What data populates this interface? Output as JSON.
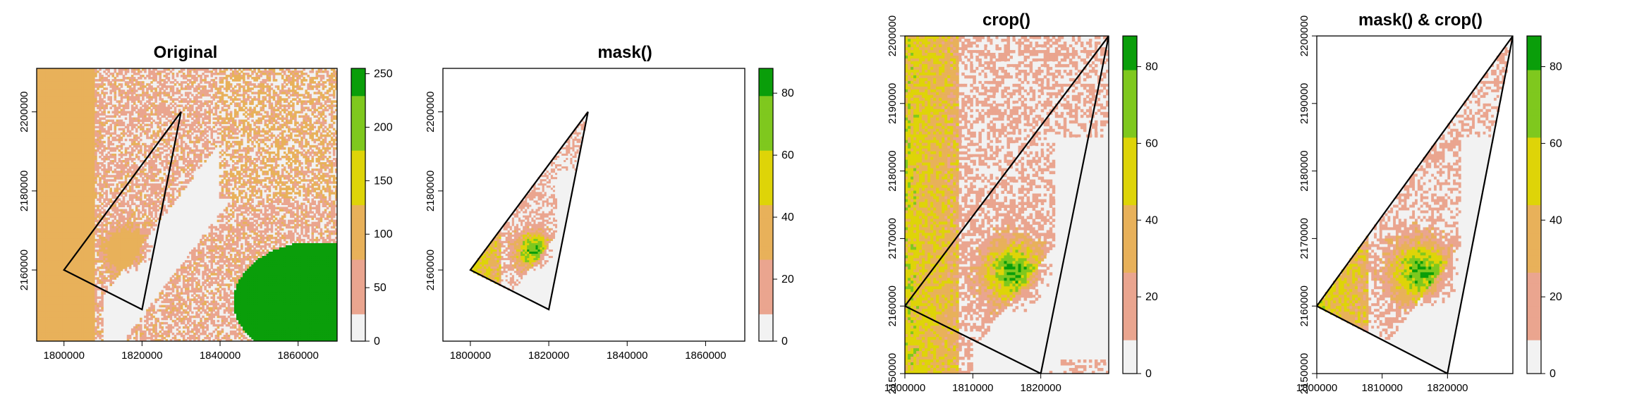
{
  "colorscale": [
    "#f2f2f2",
    "#eaa58f",
    "#e8b15a",
    "#ded408",
    "#7fc81e",
    "#0a9e0a"
  ],
  "chart_data": [
    {
      "type": "heatmap",
      "title": "Original",
      "xlim": [
        1793000,
        1870000
      ],
      "ylim": [
        2142000,
        2211000
      ],
      "xticks": [
        1800000,
        1820000,
        1840000,
        1860000
      ],
      "xtick_labels": [
        "1800000",
        "1820000",
        "1840000",
        "1860000"
      ],
      "yticks": [
        2160000,
        2180000,
        2200000
      ],
      "ytick_labels": [
        "2160000",
        "2180000",
        "2200000"
      ],
      "legend": {
        "min": 0,
        "max": 255,
        "ticks": [
          0,
          50,
          100,
          150,
          200,
          250
        ],
        "tick_labels": [
          "0",
          "50",
          "100",
          "150",
          "200",
          "250"
        ]
      },
      "polygon": [
        [
          1800000,
          2160000
        ],
        [
          1830000,
          2200000
        ],
        [
          1820000,
          2150000
        ]
      ],
      "variant": "original"
    },
    {
      "type": "heatmap",
      "title": "mask()",
      "xlim": [
        1793000,
        1870000
      ],
      "ylim": [
        2142000,
        2211000
      ],
      "xticks": [
        1800000,
        1820000,
        1840000,
        1860000
      ],
      "xtick_labels": [
        "1800000",
        "1820000",
        "1840000",
        "1860000"
      ],
      "yticks": [
        2160000,
        2180000,
        2200000
      ],
      "ytick_labels": [
        "2160000",
        "2180000",
        "2200000"
      ],
      "legend": {
        "min": 0,
        "max": 88,
        "ticks": [
          0,
          20,
          40,
          60,
          80
        ],
        "tick_labels": [
          "0",
          "20",
          "40",
          "60",
          "80"
        ]
      },
      "polygon": [
        [
          1800000,
          2160000
        ],
        [
          1830000,
          2200000
        ],
        [
          1820000,
          2150000
        ]
      ],
      "variant": "mask"
    },
    {
      "type": "heatmap",
      "title": "crop()",
      "xlim": [
        1800000,
        1830000
      ],
      "ylim": [
        2150000,
        2200000
      ],
      "xticks": [
        1800000,
        1810000,
        1820000
      ],
      "xtick_labels": [
        "1800000",
        "1810000",
        "1820000"
      ],
      "yticks": [
        2150000,
        2160000,
        2170000,
        2180000,
        2190000,
        2200000
      ],
      "ytick_labels": [
        "2150000",
        "2160000",
        "2170000",
        "2180000",
        "2190000",
        "2200000"
      ],
      "legend": {
        "min": 0,
        "max": 88,
        "ticks": [
          0,
          20,
          40,
          60,
          80
        ],
        "tick_labels": [
          "0",
          "20",
          "40",
          "60",
          "80"
        ]
      },
      "polygon": [
        [
          1800000,
          2160000
        ],
        [
          1830000,
          2200000
        ],
        [
          1820000,
          2150000
        ]
      ],
      "variant": "crop"
    },
    {
      "type": "heatmap",
      "title": "mask() & crop()",
      "xlim": [
        1800000,
        1830000
      ],
      "ylim": [
        2150000,
        2200000
      ],
      "xticks": [
        1800000,
        1810000,
        1820000
      ],
      "xtick_labels": [
        "1800000",
        "1810000",
        "1820000"
      ],
      "yticks": [
        2150000,
        2160000,
        2170000,
        2180000,
        2190000,
        2200000
      ],
      "ytick_labels": [
        "2150000",
        "2160000",
        "2170000",
        "2180000",
        "2190000",
        "2200000"
      ],
      "legend": {
        "min": 0,
        "max": 88,
        "ticks": [
          0,
          20,
          40,
          60,
          80
        ],
        "tick_labels": [
          "0",
          "20",
          "40",
          "60",
          "80"
        ]
      },
      "polygon": [
        [
          1800000,
          2160000
        ],
        [
          1830000,
          2200000
        ],
        [
          1820000,
          2150000
        ]
      ],
      "variant": "maskcrop"
    }
  ]
}
